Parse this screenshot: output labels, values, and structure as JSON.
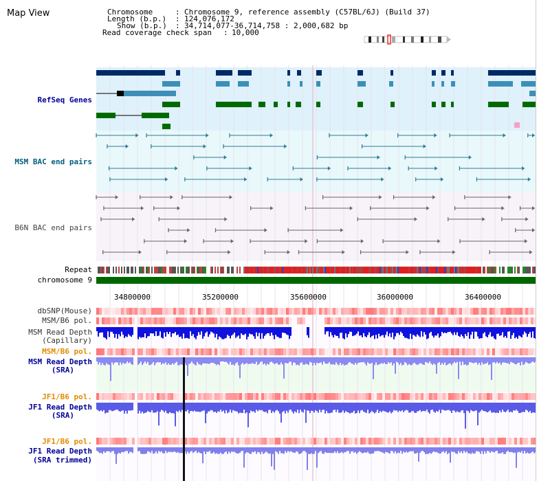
{
  "title": "Map View",
  "header": {
    "lines": [
      {
        "label": "Chromosome",
        "value": "Chromosome 9, reference assembly (C57BL/6J) (Build 37)"
      },
      {
        "label": "Length (b.p.)",
        "value": "124,076,172"
      },
      {
        "label": "Show (b.p.)",
        "value": "34,714,077-36,714,758 : 2,000,682 bp"
      }
    ],
    "check_span_label": "Read coverage check span",
    "check_span_value": "10,000"
  },
  "tracks": {
    "refseq": "RefSeq Genes",
    "msm_bac": "MSM BAC end pairs",
    "b6n_bac": "B6N BAC end pairs",
    "repeat": "Repeat",
    "chromosome": "chromosome 9",
    "dbsnp": "dbSNP(Mouse)",
    "msm_pol": "MSM/B6 pol.",
    "msm_depth_cap": [
      "MSM Read Depth",
      "(Capillary)"
    ],
    "msm_pol2": "MSM/B6 pol.",
    "msm_depth_sra": [
      "MSM Read Depth",
      "(SRA)"
    ],
    "jf1_pol": "JF1/B6 pol.",
    "jf1_depth_sra": [
      "JF1 Read Depth",
      "(SRA)"
    ],
    "jf1_pol2": "JF1/B6 pol.",
    "jf1_depth_trim": [
      "JF1 Read Depth",
      "(SRA trimmed)"
    ]
  },
  "axis": {
    "ticks": [
      "34800000",
      "35200000",
      "35600000",
      "36000000",
      "36400000"
    ]
  },
  "colors": {
    "refseq_bg": "#dff1fa",
    "msm_bg": "#e9f8fa",
    "b6n_bg": "#f7f3f8",
    "label_blue": "#000099",
    "label_teal": "#005f7f",
    "label_orange": "#e48a00",
    "chrom_green": "#006600",
    "depth_blue": "#0000cc",
    "depth_light": "#7777ee"
  }
}
